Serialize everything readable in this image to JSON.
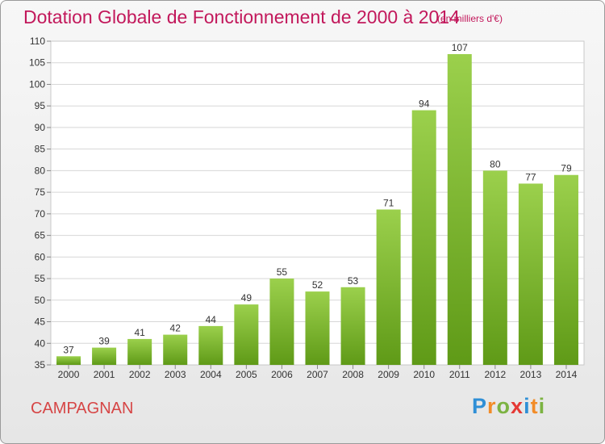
{
  "header": {
    "title": "Dotation Globale de Fonctionnement de 2000 à 2014",
    "subtitle": "(en milliers d'€)"
  },
  "footer": {
    "commune": "CAMPAGNAN",
    "logo": "Proxiti"
  },
  "colors": {
    "bar_light": "#9bd04c",
    "bar_dark": "#5f9a17",
    "title": "#c2185b",
    "commune": "#d64545"
  },
  "chart_data": {
    "type": "bar",
    "categories": [
      "2000",
      "2001",
      "2002",
      "2003",
      "2004",
      "2005",
      "2006",
      "2007",
      "2008",
      "2009",
      "2010",
      "2011",
      "2012",
      "2013",
      "2014"
    ],
    "values": [
      37,
      39,
      41,
      42,
      44,
      49,
      55,
      52,
      53,
      71,
      94,
      107,
      80,
      77,
      79
    ],
    "title": "Dotation Globale de Fonctionnement de 2000 à 2014",
    "subtitle": "(en milliers d'€)",
    "xlabel": "",
    "ylabel": "",
    "ylim": [
      35,
      110
    ],
    "yticks": [
      35,
      40,
      45,
      50,
      55,
      60,
      65,
      70,
      75,
      80,
      85,
      90,
      95,
      100,
      105,
      110
    ],
    "grid": true
  }
}
